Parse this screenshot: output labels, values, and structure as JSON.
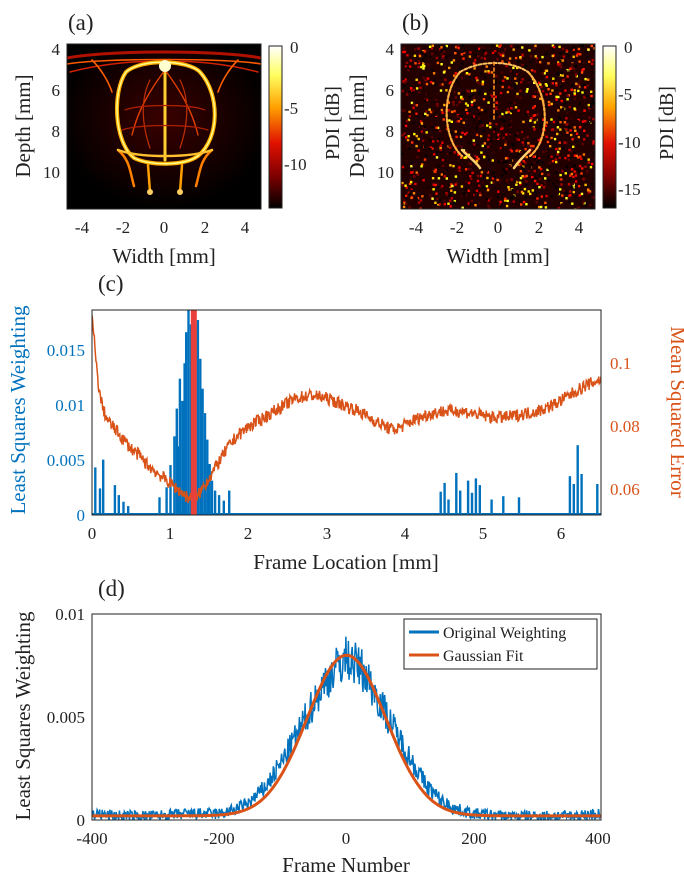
{
  "panels": {
    "a": {
      "letter": "(a)",
      "xlabel": "Width [mm]",
      "ylabel": "Depth [mm]",
      "xticks": [
        "-4",
        "-2",
        "0",
        "2",
        "4"
      ],
      "yticks": [
        "4",
        "6",
        "8",
        "10"
      ],
      "colorbar_label": "PDI [dB]",
      "colorbar_ticks": [
        "0",
        "-5",
        "-10"
      ],
      "colormap": "hot"
    },
    "b": {
      "letter": "(b)",
      "xlabel": "Width [mm]",
      "ylabel": "Depth [mm]",
      "xticks": [
        "-4",
        "-2",
        "0",
        "2",
        "4"
      ],
      "yticks": [
        "4",
        "6",
        "8",
        "10"
      ],
      "colorbar_label": "PDI [dB]",
      "colorbar_ticks": [
        "0",
        "-5",
        "-10",
        "-15"
      ],
      "colormap": "hot"
    },
    "c": {
      "letter": "(c)",
      "xlabel": "Frame Location [mm]",
      "ylabel_left": "Least Squares Weighting",
      "ylabel_right": "Mean Squared Error",
      "xticks": [
        "0",
        "1",
        "2",
        "3",
        "4",
        "5",
        "6"
      ],
      "yticks_left": [
        "0",
        "0.005",
        "0.01",
        "0.015"
      ],
      "yticks_right": [
        "0.06",
        "0.08",
        "0.1"
      ]
    },
    "d": {
      "letter": "(d)",
      "xlabel": "Frame Number",
      "ylabel": "Least Squares Weighting",
      "xticks": [
        "-400",
        "-200",
        "0",
        "200",
        "400"
      ],
      "yticks": [
        "0",
        "0.005",
        "0.01"
      ],
      "legend": [
        "Original Weighting",
        "Gaussian Fit"
      ]
    }
  },
  "colors": {
    "blue": "#0072BD",
    "orange": "#D95319",
    "red_marker": "#E8403A"
  },
  "chart_data": [
    {
      "type": "heatmap",
      "panel": "a",
      "xlabel": "Width [mm]",
      "ylabel": "Depth [mm]",
      "xlim": [
        -5,
        5
      ],
      "ylim": [
        4,
        12
      ],
      "colorbar_range_db": [
        -14,
        0
      ]
    },
    {
      "type": "heatmap",
      "panel": "b",
      "xlabel": "Width [mm]",
      "ylabel": "Depth [mm]",
      "xlim": [
        -5,
        5
      ],
      "ylim": [
        4,
        12
      ],
      "colorbar_range_db": [
        -17,
        0
      ]
    },
    {
      "type": "line",
      "panel": "c",
      "xlabel": "Frame Location [mm]",
      "xlim": [
        0,
        6.5
      ],
      "ylim_left": [
        0,
        0.0185
      ],
      "ylim_right": [
        0.05,
        0.115
      ],
      "marker_x": 1.3,
      "series": [
        {
          "name": "Least Squares Weighting",
          "axis": "left",
          "kind": "bars",
          "points": [
            [
              0.04,
              0.0043
            ],
            [
              0.1,
              0.0024
            ],
            [
              0.14,
              0.005
            ],
            [
              0.29,
              0.0027
            ],
            [
              0.34,
              0.0018
            ],
            [
              0.4,
              0.0012
            ],
            [
              0.46,
              0.0008
            ],
            [
              0.86,
              0.0016
            ],
            [
              0.95,
              0.0025
            ],
            [
              1.0,
              0.0045
            ],
            [
              1.05,
              0.0071
            ],
            [
              1.08,
              0.0096
            ],
            [
              1.1,
              0.0062
            ],
            [
              1.12,
              0.0123
            ],
            [
              1.15,
              0.0103
            ],
            [
              1.18,
              0.0137
            ],
            [
              1.2,
              0.0165
            ],
            [
              1.23,
              0.0185
            ],
            [
              1.26,
              0.0172
            ],
            [
              1.29,
              0.0158
            ],
            [
              1.32,
              0.0171
            ],
            [
              1.35,
              0.0176
            ],
            [
              1.38,
              0.0141
            ],
            [
              1.41,
              0.0114
            ],
            [
              1.44,
              0.0092
            ],
            [
              1.47,
              0.0068
            ],
            [
              1.5,
              0.0046
            ],
            [
              1.53,
              0.0031
            ],
            [
              1.57,
              0.0022
            ],
            [
              1.62,
              0.0018
            ],
            [
              1.68,
              0.0013
            ],
            [
              1.75,
              0.0022
            ],
            [
              4.45,
              0.0021
            ],
            [
              4.5,
              0.0029
            ],
            [
              4.55,
              0.0014
            ],
            [
              4.65,
              0.0038
            ],
            [
              4.7,
              0.0022
            ],
            [
              4.8,
              0.0031
            ],
            [
              4.85,
              0.002
            ],
            [
              4.9,
              0.0033
            ],
            [
              4.95,
              0.0027
            ],
            [
              5.1,
              0.0014
            ],
            [
              5.25,
              0.0017
            ],
            [
              5.45,
              0.0016
            ],
            [
              6.1,
              0.0035
            ],
            [
              6.15,
              0.0028
            ],
            [
              6.2,
              0.0063
            ],
            [
              6.25,
              0.0037
            ],
            [
              6.45,
              0.0028
            ]
          ]
        },
        {
          "name": "Mean Squared Error",
          "axis": "right",
          "kind": "line",
          "points": [
            [
              0,
              0.113
            ],
            [
              0.03,
              0.105
            ],
            [
              0.06,
              0.096
            ],
            [
              0.1,
              0.088
            ],
            [
              0.15,
              0.083
            ],
            [
              0.2,
              0.08
            ],
            [
              0.3,
              0.077
            ],
            [
              0.4,
              0.074
            ],
            [
              0.5,
              0.071
            ],
            [
              0.6,
              0.069
            ],
            [
              0.7,
              0.066
            ],
            [
              0.8,
              0.064
            ],
            [
              0.9,
              0.062
            ],
            [
              1.0,
              0.06
            ],
            [
              1.1,
              0.058
            ],
            [
              1.2,
              0.056
            ],
            [
              1.27,
              0.055
            ],
            [
              1.35,
              0.056
            ],
            [
              1.45,
              0.06
            ],
            [
              1.55,
              0.064
            ],
            [
              1.65,
              0.068
            ],
            [
              1.75,
              0.072
            ],
            [
              1.85,
              0.075
            ],
            [
              2.0,
              0.078
            ],
            [
              2.2,
              0.081
            ],
            [
              2.4,
              0.084
            ],
            [
              2.6,
              0.087
            ],
            [
              2.8,
              0.088
            ],
            [
              3.0,
              0.087
            ],
            [
              3.2,
              0.085
            ],
            [
              3.4,
              0.083
            ],
            [
              3.6,
              0.08
            ],
            [
              3.75,
              0.078
            ],
            [
              3.85,
              0.077
            ],
            [
              3.95,
              0.078
            ],
            [
              4.1,
              0.08
            ],
            [
              4.3,
              0.082
            ],
            [
              4.5,
              0.083
            ],
            [
              4.7,
              0.083
            ],
            [
              4.9,
              0.082
            ],
            [
              5.1,
              0.081
            ],
            [
              5.3,
              0.081
            ],
            [
              5.5,
              0.082
            ],
            [
              5.7,
              0.083
            ],
            [
              5.9,
              0.085
            ],
            [
              6.1,
              0.088
            ],
            [
              6.3,
              0.091
            ],
            [
              6.5,
              0.093
            ]
          ]
        }
      ]
    },
    {
      "type": "line",
      "panel": "d",
      "xlabel": "Frame Number",
      "ylabel": "Least Squares Weighting",
      "xlim": [
        -400,
        400
      ],
      "ylim": [
        0,
        0.01
      ],
      "series": [
        {
          "name": "Original Weighting",
          "kind": "noisy",
          "points": [
            [
              -400,
              0.0003
            ],
            [
              -350,
              0.0002
            ],
            [
              -300,
              0.0002
            ],
            [
              -250,
              0.0003
            ],
            [
              -200,
              0.0003
            ],
            [
              -175,
              0.0005
            ],
            [
              -150,
              0.0009
            ],
            [
              -125,
              0.0017
            ],
            [
              -100,
              0.0029
            ],
            [
              -75,
              0.0043
            ],
            [
              -50,
              0.0058
            ],
            [
              -25,
              0.0071
            ],
            [
              0,
              0.0079
            ],
            [
              25,
              0.0073
            ],
            [
              50,
              0.0059
            ],
            [
              75,
              0.0044
            ],
            [
              100,
              0.003
            ],
            [
              125,
              0.0017
            ],
            [
              150,
              0.0009
            ],
            [
              175,
              0.0005
            ],
            [
              200,
              0.0003
            ],
            [
              250,
              0.0002
            ],
            [
              300,
              0.0002
            ],
            [
              350,
              0.0002
            ],
            [
              400,
              0.0003
            ]
          ]
        },
        {
          "name": "Gaussian Fit",
          "kind": "gaussian",
          "amplitude": 0.0078,
          "mean": 0,
          "sigma": 62,
          "offset": 0.0002
        }
      ]
    }
  ]
}
